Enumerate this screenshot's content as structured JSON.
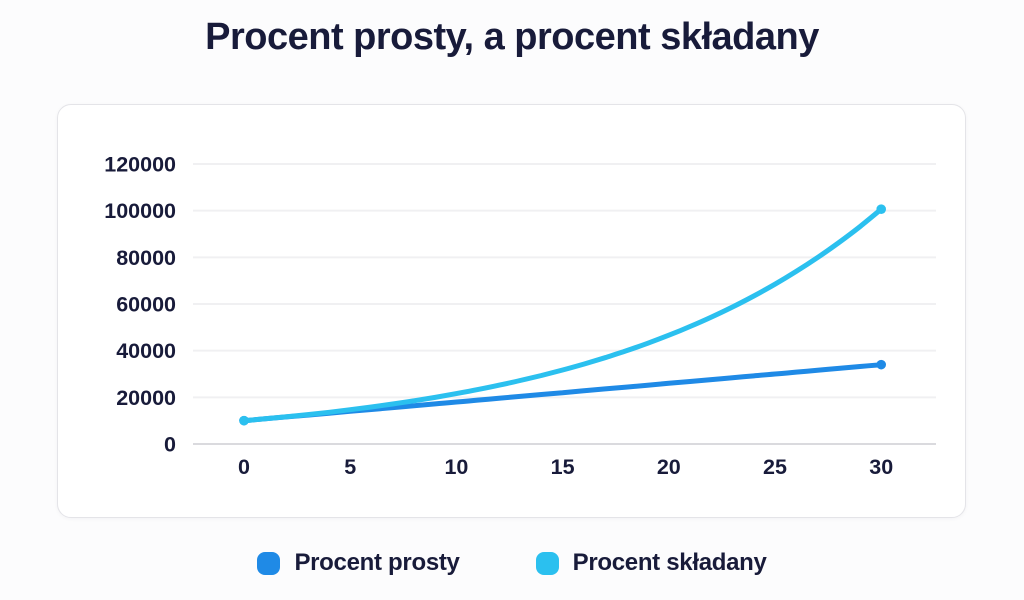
{
  "title": "Procent prosty, a procent składany",
  "colors": {
    "text_navy": "#181b3a",
    "gridline": "#f0f0f2",
    "axis_line": "#dadade",
    "card_border": "#e4e4e8",
    "card_bg": "#ffffff",
    "page_bg": "#fcfcfd",
    "simple_series": "#1f8ae6",
    "compound_series": "#2bc0ef"
  },
  "legend": {
    "items": [
      {
        "label": "Procent prosty",
        "color": "#1f8ae6",
        "dot_icon": "rounded-square-dot-icon"
      },
      {
        "label": "Procent składany",
        "color": "#2bc0ef",
        "dot_icon": "rounded-square-dot-icon"
      }
    ]
  },
  "chart_data": {
    "type": "line",
    "title": "Procent prosty, a procent składany",
    "xlabel": "",
    "ylabel": "",
    "xlim": [
      0,
      30
    ],
    "ylim": [
      0,
      120000
    ],
    "x_ticks": [
      0,
      5,
      10,
      15,
      20,
      25,
      30
    ],
    "y_ticks": [
      0,
      20000,
      40000,
      60000,
      80000,
      100000,
      120000
    ],
    "grid": "horizontal",
    "legend_position": "bottom",
    "series": [
      {
        "name": "Procent prosty",
        "color": "#1f8ae6",
        "x": [
          0,
          1,
          2,
          3,
          4,
          5,
          6,
          7,
          8,
          9,
          10,
          11,
          12,
          13,
          14,
          15,
          16,
          17,
          18,
          19,
          20,
          21,
          22,
          23,
          24,
          25,
          26,
          27,
          28,
          29,
          30
        ],
        "values": [
          10000,
          10800,
          11600,
          12400,
          13200,
          14000,
          14800,
          15600,
          16400,
          17200,
          18000,
          18800,
          19600,
          20400,
          21200,
          22000,
          22800,
          23600,
          24400,
          25200,
          26000,
          26800,
          27600,
          28400,
          29200,
          30000,
          30800,
          31600,
          32400,
          33200,
          34000
        ]
      },
      {
        "name": "Procent składany",
        "color": "#2bc0ef",
        "x": [
          0,
          1,
          2,
          3,
          4,
          5,
          6,
          7,
          8,
          9,
          10,
          11,
          12,
          13,
          14,
          15,
          16,
          17,
          18,
          19,
          20,
          21,
          22,
          23,
          24,
          25,
          26,
          27,
          28,
          29,
          30
        ],
        "values": [
          10000,
          10800,
          11664,
          12597,
          13605,
          14693,
          15869,
          17138,
          18509,
          19990,
          21589,
          23316,
          25182,
          27196,
          29372,
          31722,
          34259,
          37000,
          39960,
          43157,
          46610,
          50338,
          54365,
          58715,
          63412,
          68485,
          73964,
          79881,
          86271,
          93173,
          100627
        ]
      }
    ]
  }
}
